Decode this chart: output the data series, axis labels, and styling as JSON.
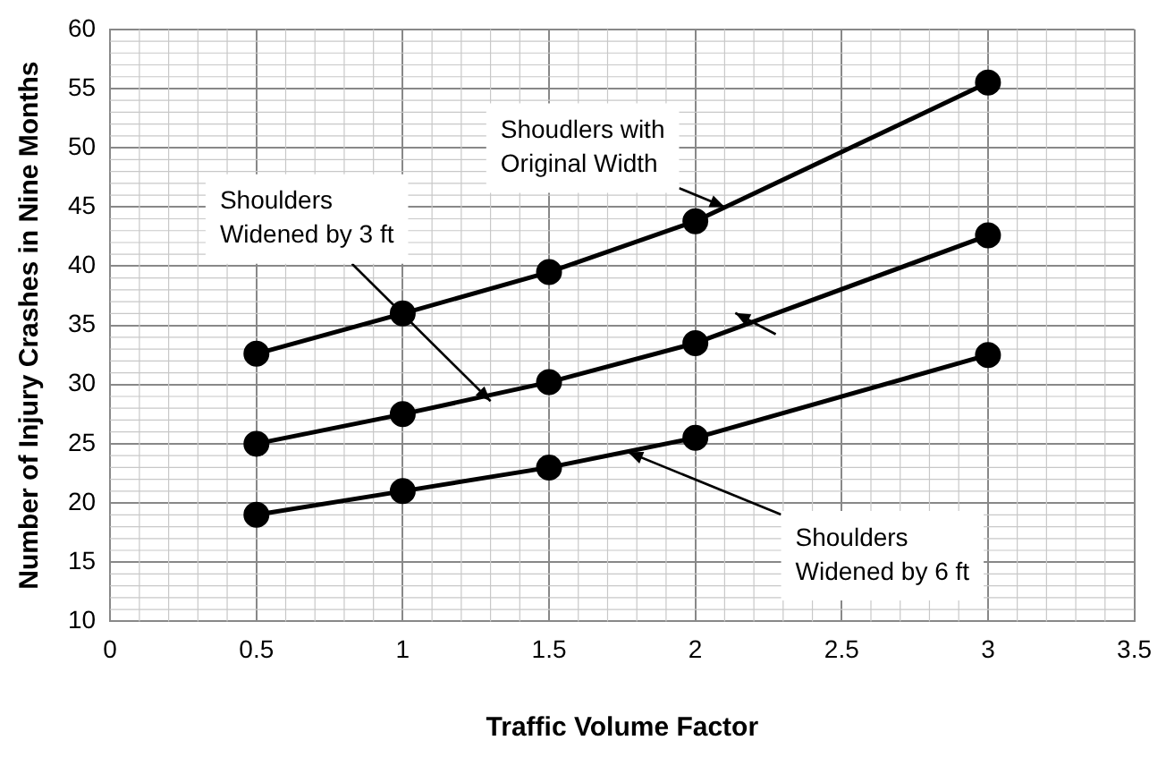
{
  "chart_data": {
    "type": "line",
    "xlabel": "Traffic Volume Factor",
    "ylabel": "Number of Injury Crashes in Nine Months",
    "x": [
      0.5,
      1,
      1.5,
      2,
      3
    ],
    "series": [
      {
        "color": "#000000",
        "values": [
          32.6,
          36,
          39.5,
          43.8,
          55.5
        ]
      },
      {
        "color": "#000000",
        "values": [
          25,
          27.5,
          30.2,
          33.5,
          42.6
        ]
      },
      {
        "color": "#000000",
        "values": [
          19,
          21,
          23,
          25.5,
          32.5
        ]
      }
    ],
    "xlim": [
      0,
      3.5
    ],
    "xticks": [
      0,
      0.5,
      1,
      1.5,
      2,
      2.5,
      3,
      3.5
    ],
    "ylim": [
      10,
      60
    ],
    "yticks": [
      10,
      15,
      20,
      25,
      30,
      35,
      40,
      45,
      50,
      55,
      60
    ],
    "grid": true,
    "legend": false,
    "marker": "circle",
    "line_style": "solid",
    "annotations": [
      {
        "text": "Shoudlers with Original Width",
        "x": 2.1,
        "y": 45
      },
      {
        "text": "Shoulders Widened by 3 ft",
        "x": 1.3,
        "y": 28.6
      },
      {
        "text": "Shoulders Widened by 6 ft",
        "x": 1.77,
        "y": 24.3
      }
    ]
  }
}
